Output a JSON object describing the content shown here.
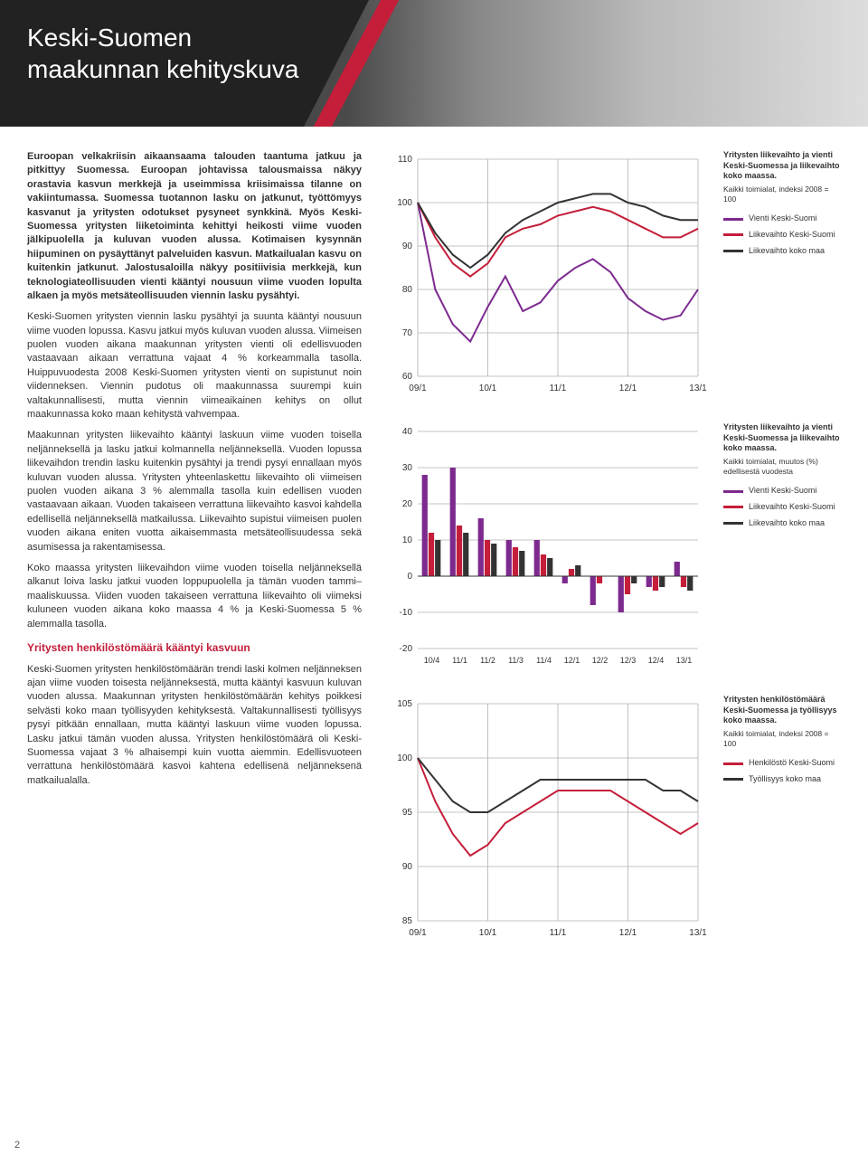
{
  "header": {
    "title_l1": "Keski-Suomen",
    "title_l2": "maakunnan kehityskuva"
  },
  "pagenum": "2",
  "text": {
    "intro": "Euroopan velkakriisin aikaansaama talouden taantuma jatkuu ja pitkittyy Suomessa. Euroopan johtavissa talousmaissa näkyy orastavia kasvun merkkejä ja useimmissa kriisimaissa tilanne on vakiintumassa. Suomessa tuotannon lasku on jatkunut, työttömyys kasvanut ja yritysten odotukset pysyneet synkkinä. Myös Keski-Suomessa yritysten liiketoiminta kehittyi heikosti viime vuoden jälkipuolella ja kuluvan vuoden alussa. Kotimaisen kysynnän hiipuminen on pysäyttänyt palveluiden kasvun. Matkailualan kasvu on kuitenkin jatkunut. Jalostusaloilla näkyy positiivisia merkkejä, kun teknologiateollisuuden vienti kääntyi nousuun viime vuoden lopulta alkaen ja myös metsäteollisuuden viennin lasku pysähtyi.",
    "p1": "Keski-Suomen yritysten viennin lasku pysähtyi ja suunta kääntyi nousuun viime vuoden lopussa. Kasvu jatkui myös kuluvan vuoden alussa. Viimeisen puolen vuoden aikana maakunnan yritysten vienti oli edellisvuoden vastaavaan aikaan verrattuna vajaat 4 % korkeammalla tasolla. Huippuvuodesta 2008 Keski-Suomen yritysten vienti on supistunut noin viidenneksen. Viennin pudotus oli maakunnassa suurempi kuin valtakunnallisesti, mutta viennin viimeaikainen kehitys on ollut maakunnassa koko maan kehitystä vahvempaa.",
    "p2": "Maakunnan yritysten liikevaihto kääntyi laskuun viime vuoden toisella neljänneksellä ja lasku jatkui kolmannella neljänneksellä. Vuoden lopussa liikevaihdon trendin lasku kuitenkin pysähtyi ja trendi pysyi ennallaan myös kuluvan vuoden alussa. Yritysten yhteenlaskettu liikevaihto oli viimeisen puolen vuoden aikana 3 % alemmalla tasolla kuin edellisen vuoden vastaavaan aikaan. Vuoden takaiseen verrattuna liikevaihto kasvoi kahdella edellisellä neljänneksellä matkailussa. Liikevaihto supistui viimeisen puolen vuoden aikana eniten vuotta aikaisemmasta metsäteollisuudessa sekä asumisessa ja rakentamisessa.",
    "p3": "Koko maassa yritysten liikevaihdon viime vuoden toisella neljänneksellä alkanut loiva lasku jatkui vuoden loppupuolella ja tämän vuoden tammi–maaliskuussa. Viiden vuoden takaiseen verrattuna liikevaihto oli viimeksi kuluneen vuoden aikana koko maassa 4 % ja Keski-Suomessa 5 % alemmalla tasolla.",
    "subhead": "Yritysten henkilöstömäärä kääntyi kasvuun",
    "p4": "Keski-Suomen yritysten henkilöstömäärän trendi laski kolmen neljänneksen ajan viime vuoden toisesta neljänneksestä, mutta kääntyi kasvuun kuluvan vuoden alussa. Maakunnan yritysten henkilöstömäärän kehitys poikkesi selvästi koko maan työllisyyden kehityksestä. Valtakunnallisesti työllisyys pysyi pitkään ennallaan, mutta kääntyi laskuun viime vuoden lopussa. Lasku jatkui tämän vuoden alussa. Yritysten henkilöstömäärä oli Keski-Suomessa vajaat 3 % alhaisempi kuin vuotta aiemmin. Edellisvuoteen verrattuna henkilöstömäärä kasvoi kahtena edellisenä neljänneksenä matkailualalla."
  },
  "chart1": {
    "type": "line",
    "ylim": [
      60,
      110
    ],
    "ytick_step": 10,
    "xcats": [
      "09/1",
      "10/1",
      "11/1",
      "12/1",
      "13/1"
    ],
    "title_fontsize": 10,
    "grid_color": "#b0b0b0",
    "bg": "#ffffff",
    "series": [
      {
        "label": "Vienti Keski-Suomi",
        "color": "#7d2a8f",
        "width": 2,
        "y": [
          100,
          80,
          72,
          68,
          76,
          83,
          75,
          77,
          82,
          85,
          87,
          84,
          78,
          75,
          73,
          74,
          80
        ]
      },
      {
        "label": "Liikevaihto Keski-Suomi",
        "color": "#c41e3a",
        "width": 2,
        "y": [
          100,
          92,
          86,
          83,
          86,
          92,
          94,
          95,
          97,
          98,
          99,
          98,
          96,
          94,
          92,
          92,
          94
        ]
      },
      {
        "label": "Liikevaihto koko maa",
        "color": "#333333",
        "width": 2,
        "y": [
          100,
          93,
          88,
          85,
          88,
          93,
          96,
          98,
          100,
          101,
          102,
          102,
          100,
          99,
          97,
          96,
          96
        ]
      }
    ],
    "legend": {
      "title": "Yritysten liikevaihto ja vienti Keski-Suomessa ja liikevaihto koko maassa.",
      "sub": "Kaikki toimialat, indeksi 2008 = 100",
      "items": [
        {
          "color": "#7d2a8f",
          "label": "Vienti Keski-Suomi"
        },
        {
          "color": "#c41e3a",
          "label": "Liikevaihto Keski-Suomi"
        },
        {
          "color": "#333333",
          "label": "Liikevaihto koko maa"
        }
      ]
    }
  },
  "chart2": {
    "type": "bar",
    "ylim": [
      -20,
      40
    ],
    "ytick_step": 10,
    "xcats": [
      "10/4",
      "11/1",
      "11/2",
      "11/3",
      "11/4",
      "12/1",
      "12/2",
      "12/3",
      "12/4",
      "13/1"
    ],
    "grid_color": "#b0b0b0",
    "bg": "#ffffff",
    "bar_width": 0.7,
    "series": [
      {
        "label": "Vienti Keski-Suomi",
        "color": "#7d2a8f",
        "y": [
          28,
          30,
          16,
          10,
          10,
          -2,
          -8,
          -10,
          -3,
          4
        ]
      },
      {
        "label": "Liikevaihto Keski-Suomi",
        "color": "#c41e3a",
        "y": [
          12,
          14,
          10,
          8,
          6,
          2,
          -2,
          -5,
          -4,
          -3
        ]
      },
      {
        "label": "Liikevaihto koko maa",
        "color": "#333333",
        "y": [
          10,
          12,
          9,
          7,
          5,
          3,
          0,
          -2,
          -3,
          -4
        ]
      }
    ],
    "legend": {
      "title": "Yritysten liikevaihto ja vienti Keski-Suomessa ja liikevaihto koko maassa.",
      "sub": "Kaikki toimialat, muutos (%) edellisestä vuodesta",
      "items": [
        {
          "color": "#7d2a8f",
          "label": "Vienti Keski-Suomi"
        },
        {
          "color": "#c41e3a",
          "label": "Liikevaihto Keski-Suomi"
        },
        {
          "color": "#333333",
          "label": "Liikevaihto koko maa"
        }
      ]
    }
  },
  "chart3": {
    "type": "line",
    "ylim": [
      85,
      105
    ],
    "ytick_step": 5,
    "xcats": [
      "09/1",
      "10/1",
      "11/1",
      "12/1",
      "13/1"
    ],
    "grid_color": "#b0b0b0",
    "bg": "#ffffff",
    "series": [
      {
        "label": "Henkilöstö Keski-Suomi",
        "color": "#c41e3a",
        "width": 2,
        "y": [
          100,
          96,
          93,
          91,
          92,
          94,
          95,
          96,
          97,
          97,
          97,
          97,
          96,
          95,
          94,
          93,
          94
        ]
      },
      {
        "label": "Työllisyys koko maa",
        "color": "#333333",
        "width": 2,
        "y": [
          100,
          98,
          96,
          95,
          95,
          96,
          97,
          98,
          98,
          98,
          98,
          98,
          98,
          98,
          97,
          97,
          96
        ]
      }
    ],
    "legend": {
      "title": "Yritysten henkilöstömäärä Keski-Suomessa ja työllisyys koko maassa.",
      "sub": "Kaikki toimialat, indeksi 2008 = 100",
      "items": [
        {
          "color": "#c41e3a",
          "label": "Henkilöstö Keski-Suomi"
        },
        {
          "color": "#333333",
          "label": "Työllisyys koko maa"
        }
      ]
    }
  }
}
